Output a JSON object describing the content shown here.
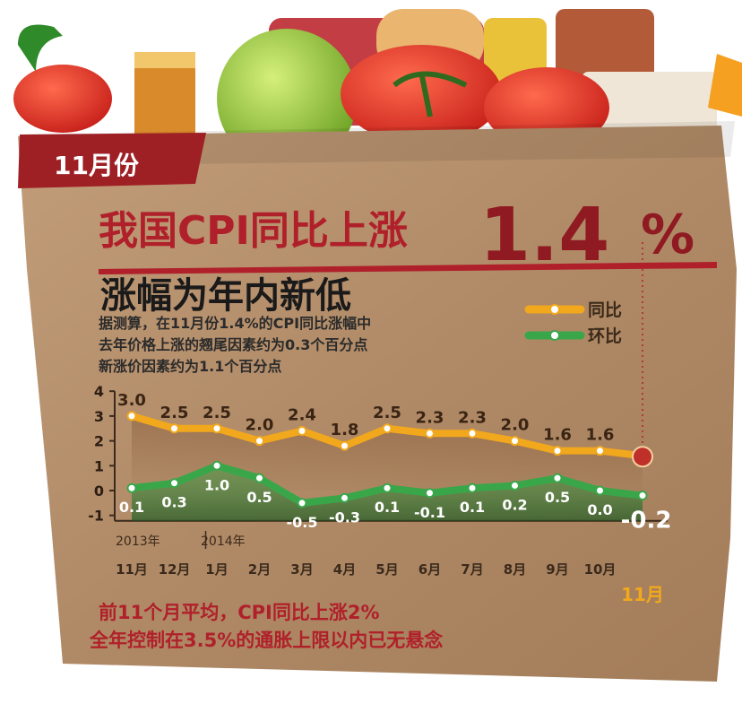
{
  "badge": {
    "label": "11月份"
  },
  "headline": {
    "main": "我国CPI同比上涨",
    "value": "1.4",
    "unit": "%",
    "sub": "涨幅为年内新低"
  },
  "intro": {
    "line1": "据测算，在11月份1.4%的CPI同比涨幅中",
    "line2": "去年价格上涨的翘尾因素约为0.3个百分点",
    "line3": "新涨价因素约为1.1个百分点"
  },
  "footer": {
    "line1": "前11个月平均，CPI同比上涨2%",
    "line2": "全年控制在3.5%的通胀上限以内已无悬念"
  },
  "colors": {
    "yoy": "#f2a81d",
    "mom": "#3aa64a",
    "bag": "#b48f6d",
    "banner": "#9e1f24",
    "accent": "#b0202a"
  },
  "chart_data": {
    "type": "line",
    "title": "",
    "xlabel": "",
    "ylabel": "",
    "ylim": [
      -1,
      4
    ],
    "yticks": [
      "4",
      "3",
      "2",
      "1",
      "0",
      "-1"
    ],
    "year_labels": [
      "2013年",
      "2014年"
    ],
    "categories": [
      "11月",
      "12月",
      "1月",
      "2月",
      "3月",
      "4月",
      "5月",
      "6月",
      "7月",
      "8月",
      "9月",
      "10月",
      "11月"
    ],
    "legend": [
      "同比",
      "环比"
    ],
    "series": [
      {
        "name": "同比",
        "values": [
          3.0,
          2.5,
          2.5,
          2.0,
          2.4,
          1.8,
          2.5,
          2.3,
          2.3,
          2.0,
          1.6,
          1.6,
          1.4
        ],
        "labels": [
          "3.0",
          "2.5",
          "2.5",
          "2.0",
          "2.4",
          "1.8",
          "2.5",
          "2.3",
          "2.3",
          "2.0",
          "1.6",
          "1.6",
          ""
        ]
      },
      {
        "name": "环比",
        "values": [
          0.1,
          0.3,
          1.0,
          0.5,
          -0.5,
          -0.3,
          0.1,
          -0.1,
          0.1,
          0.2,
          0.5,
          0.0,
          -0.2
        ],
        "labels": [
          "0.1",
          "0.3",
          "1.0",
          "0.5",
          "-0.5",
          "-0.3",
          "0.1",
          "-0.1",
          "0.1",
          "0.2",
          "0.5",
          "0.0",
          "-0.2"
        ]
      }
    ]
  }
}
